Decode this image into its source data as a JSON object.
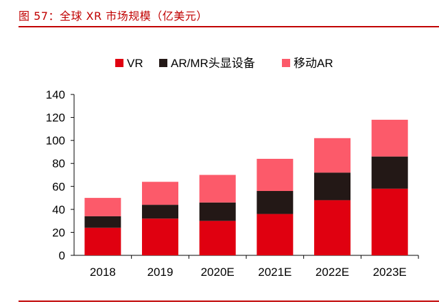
{
  "figure": {
    "title": "图 57：全球 XR 市场规模（亿美元）"
  },
  "chart_data": {
    "type": "bar",
    "stacked": true,
    "categories": [
      "2018",
      "2019",
      "2020E",
      "2021E",
      "2022E",
      "2023E"
    ],
    "series": [
      {
        "name": "VR",
        "color": "#e00010",
        "values": [
          24,
          32,
          30,
          36,
          48,
          58
        ]
      },
      {
        "name": "AR/MR头显设备",
        "color": "#231816",
        "values": [
          10,
          12,
          16,
          20,
          24,
          28
        ]
      },
      {
        "name": "移动AR",
        "color": "#fc5a6a",
        "values": [
          16,
          20,
          24,
          28,
          30,
          32
        ]
      }
    ],
    "ylim": [
      0,
      140
    ],
    "yticks": [
      0,
      20,
      40,
      60,
      80,
      100,
      120,
      140
    ],
    "grid": false,
    "legend_position": "top-center",
    "xlabel": "",
    "ylabel": ""
  }
}
